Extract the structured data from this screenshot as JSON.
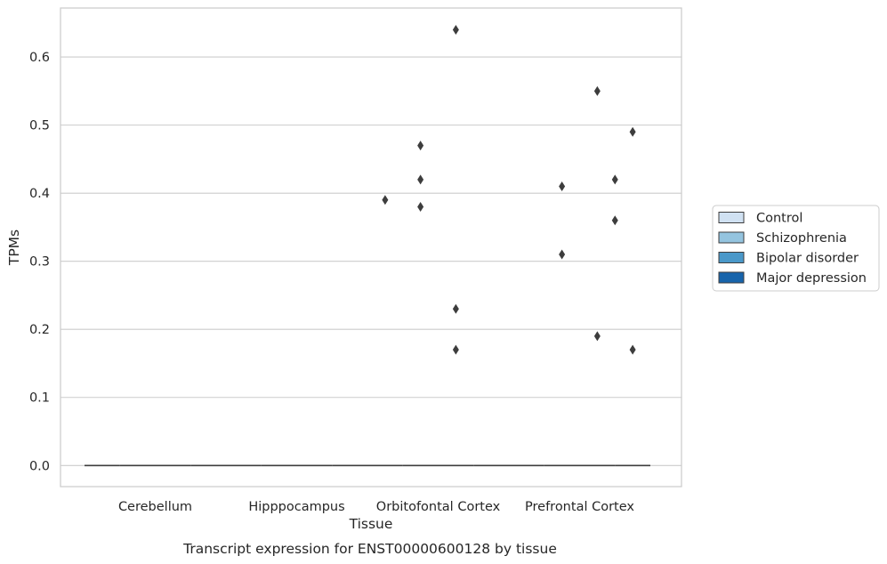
{
  "chart_data": {
    "type": "boxplot",
    "title": "",
    "caption": "Transcript expression for ENST00000600128 by tissue",
    "xlabel": "Tissue",
    "ylabel": "TPMs",
    "ylim": [
      -0.031,
      0.672
    ],
    "yticks": [
      0.0,
      0.1,
      0.2,
      0.3,
      0.4,
      0.5,
      0.6
    ],
    "ytick_labels": [
      "0.0",
      "0.1",
      "0.2",
      "0.3",
      "0.4",
      "0.5",
      "0.6"
    ],
    "grid": "horizontal",
    "legend_position": "right",
    "categories": [
      "Cerebellum",
      "Hipppocampus",
      "Orbitofontal Cortex",
      "Prefrontal Cortex"
    ],
    "series": [
      {
        "name": "Control",
        "color": "#d0e1f2",
        "medians": [
          0,
          0,
          0,
          0
        ],
        "outliers": [
          [],
          [],
          [
            0.39
          ],
          []
        ]
      },
      {
        "name": "Schizophrenia",
        "color": "#94c4df",
        "medians": [
          0,
          0,
          0,
          0
        ],
        "outliers": [
          [],
          [],
          [
            0.47,
            0.42,
            0.38
          ],
          [
            0.41,
            0.31
          ]
        ]
      },
      {
        "name": "Bipolar disorder",
        "color": "#4a98c9",
        "medians": [
          0,
          0,
          0,
          0
        ],
        "outliers": [
          [],
          [],
          [
            0.64,
            0.23,
            0.17
          ],
          [
            0.55,
            0.19
          ]
        ]
      },
      {
        "name": "Major depression",
        "color": "#1764ab",
        "medians": [
          0,
          0,
          0,
          0
        ],
        "outliers": [
          [],
          [],
          [],
          [
            0.49,
            0.17
          ]
        ]
      }
    ],
    "extra_outliers": [
      {
        "category": "Prefrontal Cortex",
        "offset": 1.5,
        "values": [
          0.42,
          0.36
        ]
      }
    ]
  }
}
